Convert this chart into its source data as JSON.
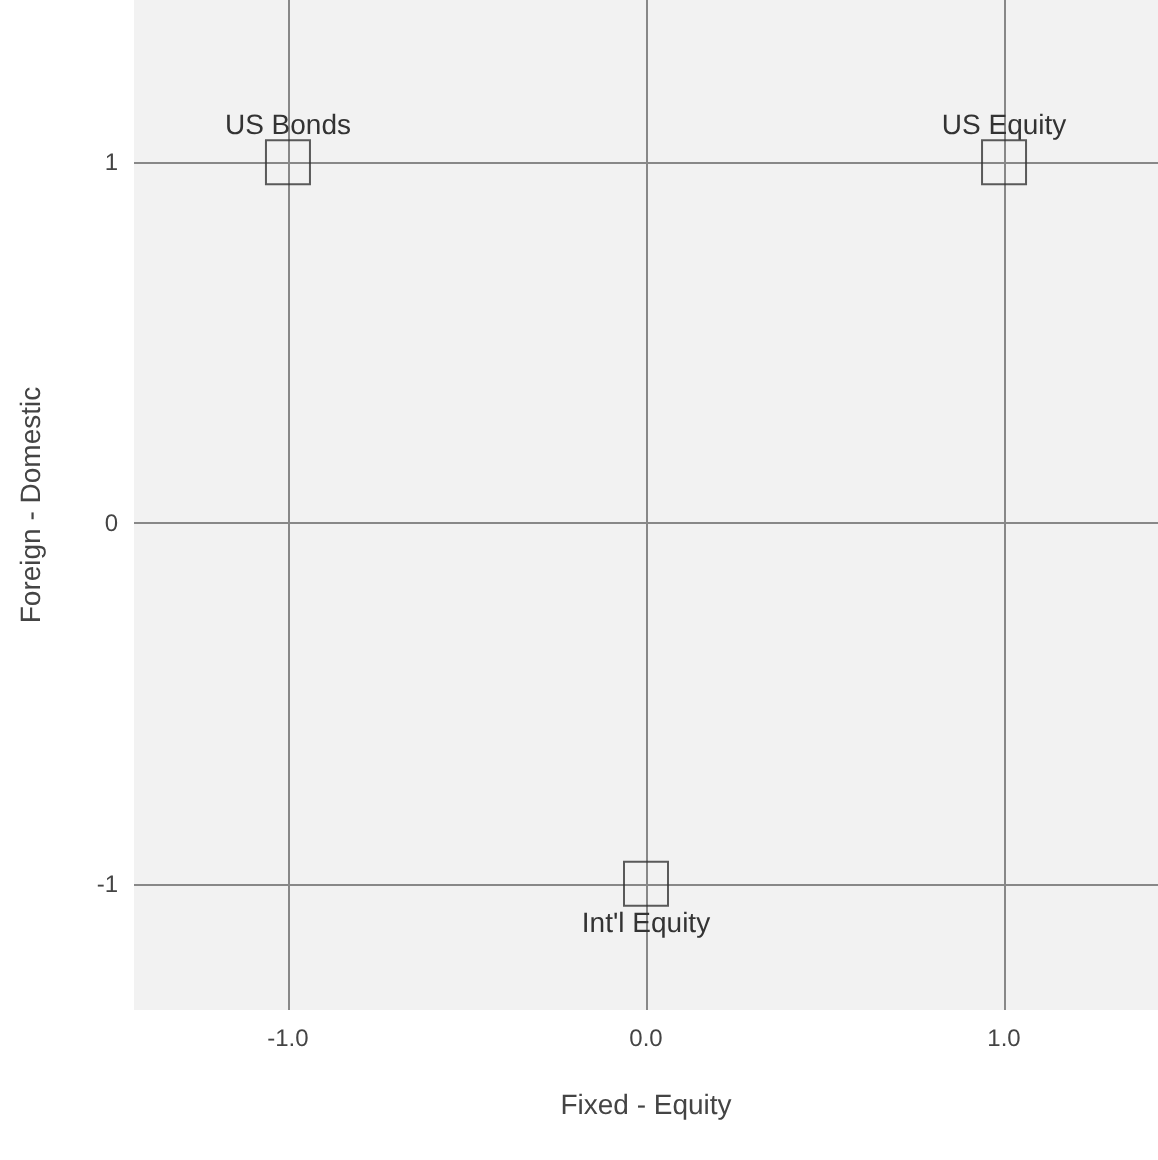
{
  "chart_data": {
    "type": "scatter",
    "xlabel": "Fixed - Equity",
    "ylabel": "Foreign - Domestic",
    "x": [
      -1,
      1,
      0
    ],
    "series": [
      {
        "color": "#333333",
        "values": [
          1,
          1,
          -1
        ]
      }
    ],
    "annotations": [
      {
        "text": "US Bonds",
        "x": -1,
        "y": 1
      },
      {
        "text": "US Equity",
        "x": 1,
        "y": 1
      },
      {
        "text": "Int'l Equity",
        "x": 0,
        "y": -1
      }
    ],
    "xlim": [
      -1.43,
      1.43
    ],
    "xticks": [
      {
        "value": -1,
        "label": "-1.0"
      },
      {
        "value": 0,
        "label": "0.0"
      },
      {
        "value": 1,
        "label": "1.0"
      }
    ],
    "ylim": [
      -1.35,
      1.45
    ],
    "yticks": [
      -1,
      0,
      1
    ],
    "grid": true,
    "marker": "square"
  }
}
